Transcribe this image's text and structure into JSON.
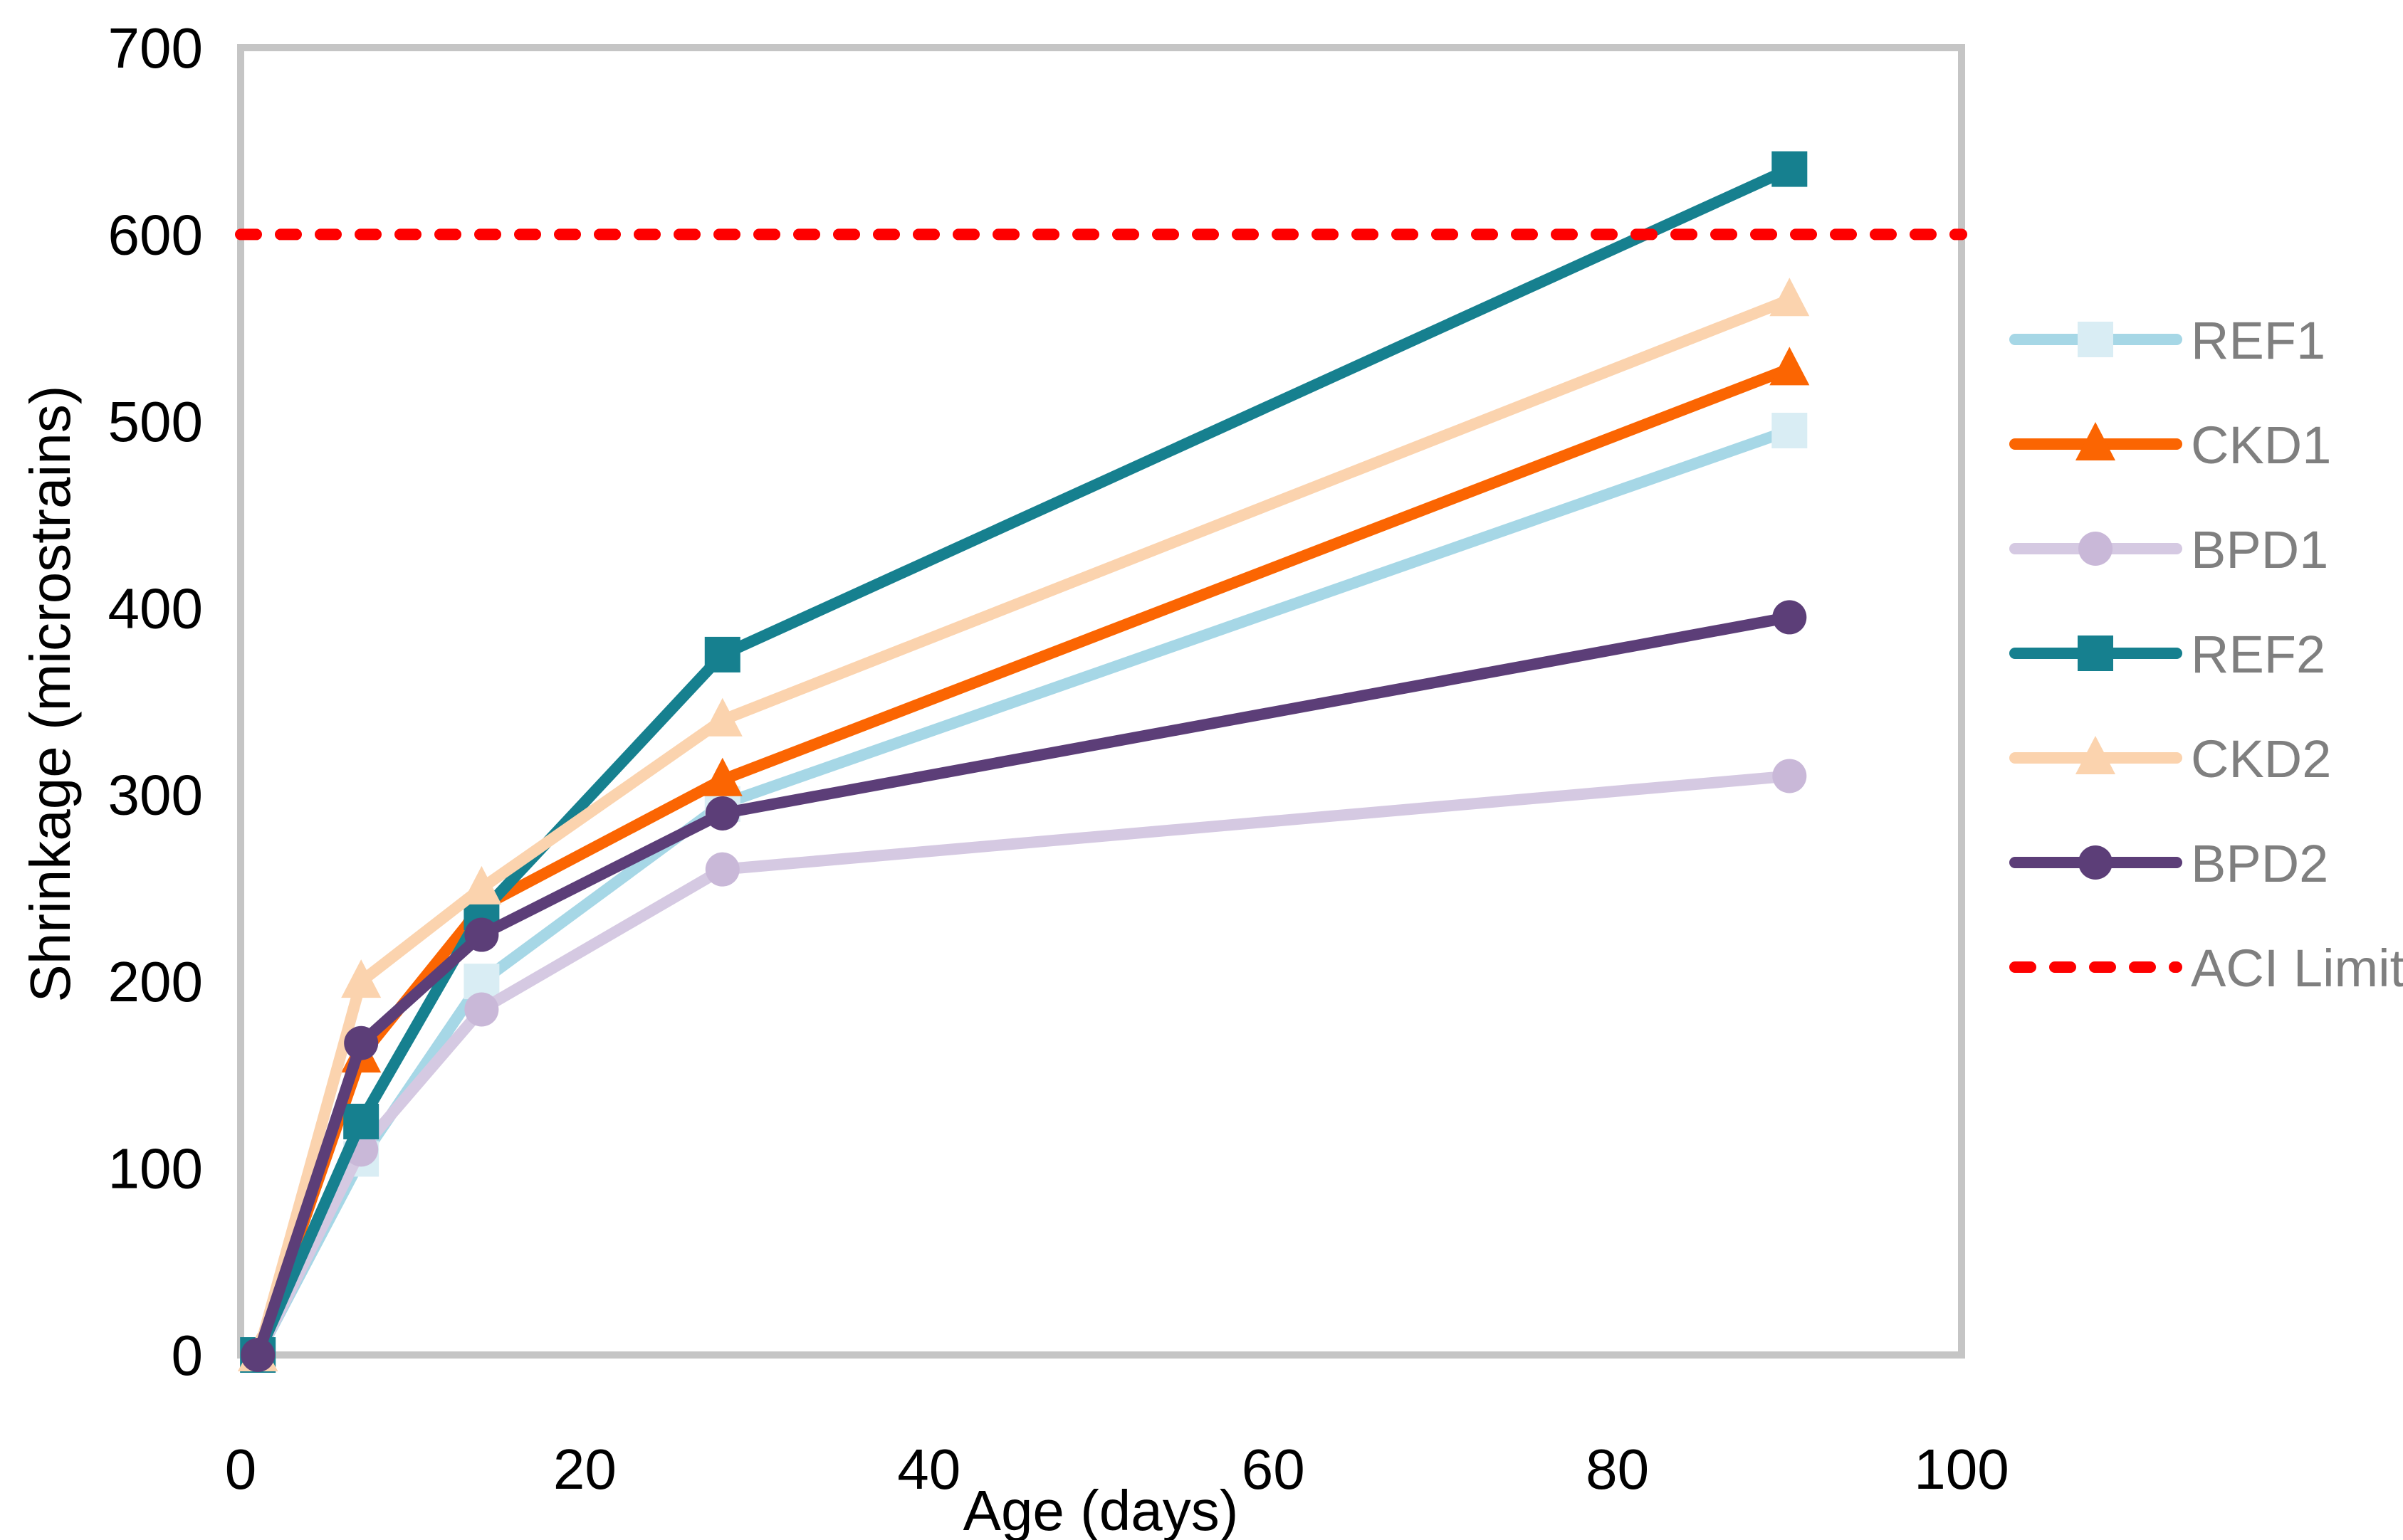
{
  "chart_data": {
    "type": "line",
    "title": "",
    "xlabel": "Age (days)",
    "ylabel": "Shrinkage (microstrains)",
    "x": [
      1,
      7,
      14,
      28,
      90
    ],
    "xlim": [
      0,
      100
    ],
    "ylim": [
      0,
      700
    ],
    "x_ticks": [
      0,
      20,
      40,
      60,
      80,
      100
    ],
    "y_ticks": [
      0,
      100,
      200,
      300,
      400,
      500,
      600,
      700
    ],
    "grid": false,
    "legend_position": "right",
    "series": [
      {
        "name": "REF1",
        "marker": "square",
        "color": "#A6D7E6",
        "marker_color": "#D9EDF4",
        "values": [
          0,
          105,
          200,
          295,
          495
        ]
      },
      {
        "name": "CKD1",
        "marker": "triangle",
        "color": "#FB6502",
        "marker_color": "#FB6502",
        "values": [
          0,
          160,
          240,
          308,
          528
        ]
      },
      {
        "name": "BPD1",
        "marker": "circle",
        "color": "#D5C9E2",
        "marker_color": "#C9B8D8",
        "values": [
          0,
          110,
          185,
          260,
          310
        ]
      },
      {
        "name": "REF2",
        "marker": "square",
        "color": "#16808F",
        "marker_color": "#16808F",
        "values": [
          0,
          125,
          237,
          375,
          635
        ]
      },
      {
        "name": "CKD2",
        "marker": "triangle",
        "color": "#FBD3AE",
        "marker_color": "#FBD3AE",
        "values": [
          0,
          200,
          250,
          340,
          565
        ]
      },
      {
        "name": "BPD2",
        "marker": "circle",
        "color": "#5C3E78",
        "marker_color": "#5C3E78",
        "values": [
          0,
          167,
          225,
          290,
          395
        ]
      }
    ],
    "reference_line": {
      "name": "ACI Limit",
      "value": 600,
      "color": "#FE0000",
      "style": "dashed"
    }
  },
  "theme": {
    "axis_color": "#C5C5C5",
    "tick_color": "#000000",
    "legend_text_color": "#7F7F7F",
    "background": "#FFFFFF"
  }
}
